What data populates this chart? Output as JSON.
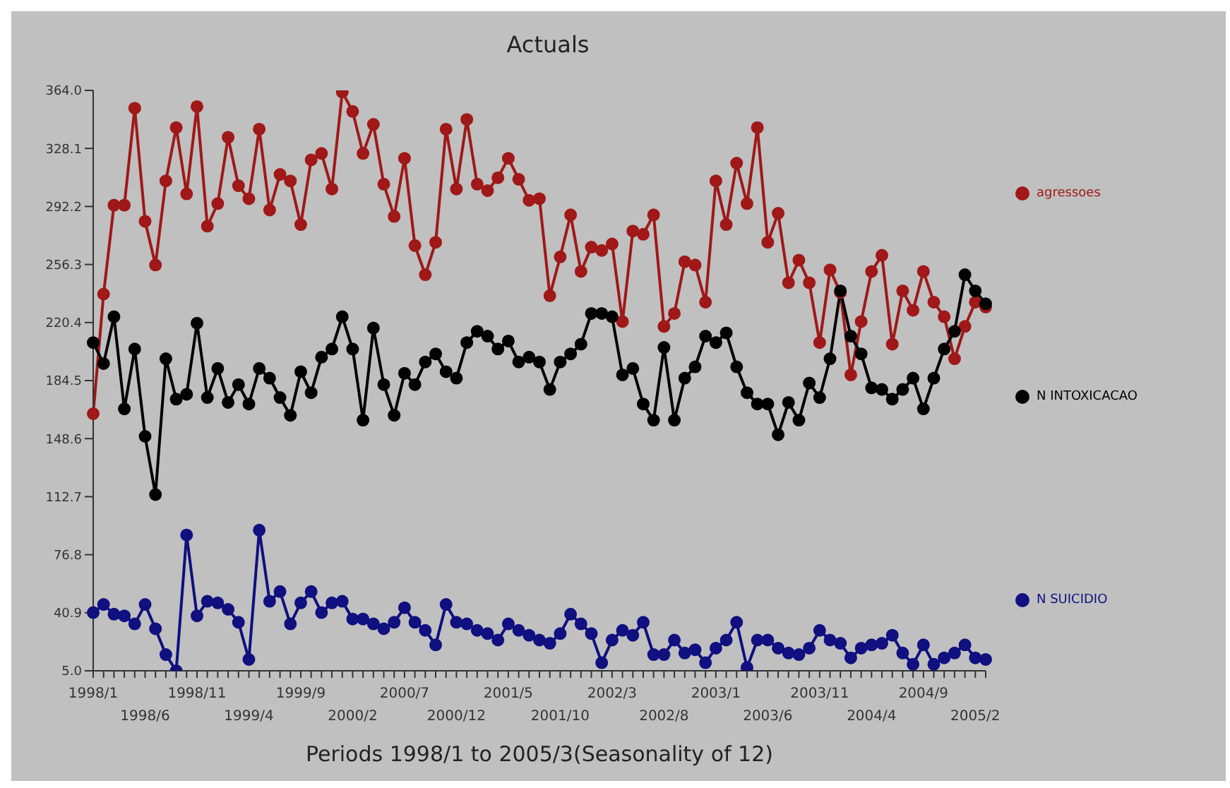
{
  "chart_data": {
    "type": "line",
    "title": "Actuals",
    "xlabel": "Periods 1998/1 to 2005/3(Seasonality of 12)",
    "categories": [
      "1998/1",
      null,
      null,
      null,
      null,
      "1998/6",
      null,
      null,
      null,
      null,
      "1998/11",
      null,
      null,
      null,
      null,
      "1999/4",
      null,
      null,
      null,
      null,
      "1999/9",
      null,
      null,
      null,
      null,
      "2000/2",
      null,
      null,
      null,
      null,
      "2000/7",
      null,
      null,
      null,
      null,
      "2000/12",
      null,
      null,
      null,
      null,
      "2001/5",
      null,
      null,
      null,
      null,
      "2001/10",
      null,
      null,
      null,
      null,
      "2002/3",
      null,
      null,
      null,
      null,
      "2002/8",
      null,
      null,
      null,
      null,
      "2003/1",
      null,
      null,
      null,
      null,
      "2003/6",
      null,
      null,
      null,
      null,
      "2003/11",
      null,
      null,
      null,
      null,
      "2004/4",
      null,
      null,
      null,
      null,
      "2004/9",
      null,
      null,
      null,
      null,
      "2005/2",
      null
    ],
    "series": [
      {
        "name": "agressoes",
        "color": "#a01818",
        "values": [
          164,
          238,
          293,
          293,
          353,
          283,
          256,
          308,
          341,
          300,
          354,
          280,
          294,
          335,
          305,
          297,
          340,
          290,
          312,
          308,
          281,
          321,
          325,
          303,
          363,
          351,
          325,
          343,
          306,
          286,
          322,
          268,
          250,
          270,
          340,
          303,
          346,
          306,
          302,
          310,
          322,
          309,
          296,
          297,
          237,
          261,
          287,
          252,
          267,
          265,
          269,
          221,
          277,
          275,
          287,
          218,
          226,
          258,
          256,
          233,
          308,
          281,
          319,
          294,
          341,
          270,
          288,
          245,
          259,
          245,
          208,
          253,
          239,
          188,
          221,
          252,
          262,
          207,
          240,
          228,
          252,
          233,
          224,
          198,
          218,
          233,
          230
        ]
      },
      {
        "name": "N INTOXICACAO",
        "color": "#000000",
        "values": [
          208,
          195,
          224,
          167,
          204,
          150,
          114,
          198,
          173,
          176,
          220,
          174,
          192,
          171,
          182,
          170,
          192,
          186,
          174,
          163,
          190,
          177,
          199,
          204,
          224,
          204,
          160,
          217,
          182,
          163,
          189,
          182,
          196,
          201,
          190,
          186,
          208,
          215,
          212,
          204,
          209,
          196,
          199,
          196,
          179,
          196,
          201,
          207,
          226,
          226,
          224,
          188,
          192,
          170,
          160,
          205,
          160,
          186,
          193,
          212,
          208,
          214,
          193,
          177,
          170,
          170,
          151,
          171,
          160,
          183,
          174,
          198,
          240,
          212,
          201,
          180,
          179,
          173,
          179,
          186,
          167,
          186,
          204,
          215,
          250,
          240,
          232
        ]
      },
      {
        "name": "N SUICIDIO",
        "color": "#101080",
        "values": [
          41,
          46,
          40,
          39,
          34,
          46,
          31,
          15,
          5,
          89,
          39,
          48,
          47,
          43,
          35,
          12,
          92,
          48,
          54,
          34,
          47,
          54,
          41,
          47,
          48,
          37,
          37,
          34,
          31,
          35,
          44,
          35,
          30,
          21,
          46,
          35,
          34,
          30,
          28,
          24,
          34,
          30,
          27,
          24,
          22,
          28,
          40,
          34,
          28,
          10,
          24,
          30,
          27,
          35,
          15,
          15,
          24,
          16,
          18,
          10,
          19,
          24,
          35,
          7,
          24,
          24,
          19,
          16,
          15,
          19,
          30,
          24,
          22,
          13,
          19,
          21,
          22,
          27,
          16,
          9,
          21,
          9,
          13,
          16,
          21,
          13,
          12
        ]
      }
    ],
    "ylim": [
      5,
      364
    ],
    "yticks": [
      {
        "value": 5,
        "label": "5.0"
      },
      40.9,
      76.8,
      112.7,
      148.6,
      184.5,
      220.4,
      256.3,
      292.2,
      328.1,
      {
        "value": 364,
        "label": "364.0"
      }
    ],
    "grid": false,
    "legend": "right",
    "marker": "circle",
    "line_style": "solid"
  }
}
